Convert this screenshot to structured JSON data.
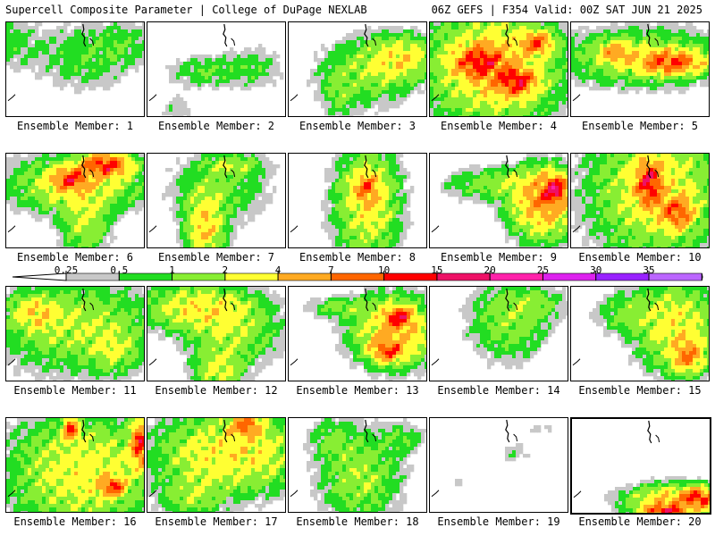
{
  "header": {
    "title_left": "Supercell Composite Parameter | College of DuPage NEXLAB",
    "title_right": "06Z GEFS | F354 Valid: 00Z SAT JUN 21 2025"
  },
  "colorbar": {
    "levels": [
      "0.25",
      "0.5",
      "1",
      "2",
      "4",
      "7",
      "10",
      "15",
      "20",
      "25",
      "30",
      "35"
    ],
    "colors": [
      "#c8c8c8",
      "#22dd22",
      "#88ee33",
      "#ffff33",
      "#ffaa22",
      "#ff6600",
      "#ff0000",
      "#ee1166",
      "#ff22aa",
      "#dd22ee",
      "#9922ff",
      "#bb66ff",
      "#33ddff"
    ]
  },
  "panel_label_prefix": "Ensemble Member:",
  "panels": [
    {
      "id": "1",
      "fields": [
        [
          -0.2,
          0.2,
          0.35,
          0.25,
          1.2
        ],
        [
          0.55,
          0.35,
          0.3,
          0.3,
          0.9
        ],
        [
          0.85,
          0.2,
          0.2,
          0.2,
          0.7
        ]
      ]
    },
    {
      "id": "2",
      "fields": [
        [
          0.4,
          0.5,
          0.25,
          0.15,
          0.9
        ],
        [
          0.75,
          0.45,
          0.2,
          0.2,
          0.7
        ],
        [
          0.2,
          0.9,
          0.1,
          0.15,
          0.5
        ]
      ]
    },
    {
      "id": "3",
      "fields": [
        [
          0.55,
          0.5,
          0.3,
          0.3,
          1.6
        ],
        [
          0.8,
          0.35,
          0.2,
          0.2,
          3.0
        ],
        [
          0.35,
          0.75,
          0.1,
          0.2,
          1.0
        ]
      ]
    },
    {
      "id": "4",
      "fields": [
        [
          0.45,
          0.45,
          0.4,
          0.5,
          4.0
        ],
        [
          0.35,
          0.4,
          0.15,
          0.15,
          9.5
        ],
        [
          0.6,
          0.6,
          0.12,
          0.12,
          10.5
        ],
        [
          0.75,
          0.2,
          0.1,
          0.1,
          7.5
        ]
      ]
    },
    {
      "id": "5",
      "fields": [
        [
          0.5,
          0.35,
          0.5,
          0.25,
          2.2
        ],
        [
          0.7,
          0.4,
          0.2,
          0.1,
          9.0
        ],
        [
          0.3,
          0.3,
          0.1,
          0.1,
          5.0
        ]
      ]
    },
    {
      "id": "6",
      "fields": [
        [
          0.5,
          0.3,
          0.4,
          0.25,
          3.0
        ],
        [
          0.7,
          0.1,
          0.15,
          0.1,
          11.0
        ],
        [
          0.55,
          0.7,
          0.15,
          0.3,
          2.0
        ],
        [
          0.45,
          0.25,
          0.1,
          0.1,
          9.0
        ]
      ]
    },
    {
      "id": "7",
      "fields": [
        [
          0.5,
          0.35,
          0.3,
          0.3,
          1.2
        ],
        [
          0.4,
          0.75,
          0.12,
          0.3,
          4.0
        ],
        [
          0.6,
          0.1,
          0.2,
          0.1,
          1.5
        ]
      ]
    },
    {
      "id": "8",
      "fields": [
        [
          0.55,
          0.5,
          0.2,
          0.5,
          3.0
        ],
        [
          0.55,
          0.35,
          0.08,
          0.15,
          6.0
        ]
      ]
    },
    {
      "id": "9",
      "fields": [
        [
          0.8,
          0.5,
          0.2,
          0.3,
          6.0
        ],
        [
          0.88,
          0.35,
          0.08,
          0.12,
          13.0
        ],
        [
          0.45,
          0.3,
          0.3,
          0.15,
          1.5
        ]
      ]
    },
    {
      "id": "10",
      "fields": [
        [
          0.6,
          0.35,
          0.4,
          0.6,
          3.0
        ],
        [
          0.55,
          0.3,
          0.08,
          0.2,
          11.0
        ],
        [
          0.75,
          0.6,
          0.1,
          0.15,
          7.5
        ]
      ]
    },
    {
      "id": "11",
      "fields": [
        [
          0.5,
          0.4,
          0.5,
          0.4,
          2.0
        ],
        [
          0.75,
          0.65,
          0.15,
          0.2,
          1.5
        ],
        [
          0.2,
          0.25,
          0.15,
          0.15,
          3.0
        ]
      ]
    },
    {
      "id": "12",
      "fields": [
        [
          0.35,
          0.2,
          0.35,
          0.2,
          3.0
        ],
        [
          0.6,
          0.45,
          0.3,
          0.3,
          1.8
        ],
        [
          0.5,
          0.85,
          0.15,
          0.2,
          2.5
        ]
      ]
    },
    {
      "id": "13",
      "fields": [
        [
          0.75,
          0.45,
          0.25,
          0.3,
          4.5
        ],
        [
          0.78,
          0.3,
          0.08,
          0.08,
          11.0
        ],
        [
          0.7,
          0.65,
          0.1,
          0.1,
          7.5
        ],
        [
          0.35,
          0.2,
          0.2,
          0.1,
          1.2
        ]
      ]
    },
    {
      "id": "14",
      "fields": [
        [
          0.55,
          0.35,
          0.25,
          0.35,
          1.5
        ],
        [
          0.75,
          0.15,
          0.2,
          0.15,
          1.0
        ]
      ]
    },
    {
      "id": "15",
      "fields": [
        [
          0.75,
          0.4,
          0.25,
          0.4,
          3.0
        ],
        [
          0.82,
          0.7,
          0.1,
          0.15,
          6.0
        ],
        [
          0.4,
          0.25,
          0.2,
          0.2,
          1.2
        ]
      ]
    },
    {
      "id": "16",
      "fields": [
        [
          0.55,
          0.55,
          0.45,
          0.5,
          3.0
        ],
        [
          0.95,
          0.25,
          0.06,
          0.2,
          11.0
        ],
        [
          0.75,
          0.7,
          0.08,
          0.08,
          9.0
        ],
        [
          0.45,
          0.1,
          0.05,
          0.1,
          9.0
        ]
      ]
    },
    {
      "id": "17",
      "fields": [
        [
          0.6,
          0.35,
          0.45,
          0.35,
          3.5
        ],
        [
          0.7,
          0.05,
          0.1,
          0.1,
          7.5
        ],
        [
          0.3,
          0.8,
          0.2,
          0.2,
          1.5
        ]
      ]
    },
    {
      "id": "18",
      "fields": [
        [
          0.5,
          0.6,
          0.25,
          0.4,
          1.8
        ],
        [
          0.3,
          0.2,
          0.15,
          0.2,
          1.0
        ],
        [
          0.8,
          0.2,
          0.15,
          0.15,
          0.9
        ]
      ]
    },
    {
      "id": "19",
      "fields": [
        [
          0.6,
          0.35,
          0.12,
          0.12,
          0.4
        ],
        [
          0.8,
          0.1,
          0.12,
          0.08,
          0.35
        ],
        [
          0.2,
          0.65,
          0.06,
          0.05,
          0.3
        ]
      ]
    },
    {
      "id": "20",
      "fields": [
        [
          0.75,
          0.85,
          0.3,
          0.15,
          5.0
        ],
        [
          0.65,
          0.95,
          0.12,
          0.06,
          12.0
        ],
        [
          0.9,
          0.8,
          0.1,
          0.08,
          9.0
        ]
      ]
    }
  ]
}
